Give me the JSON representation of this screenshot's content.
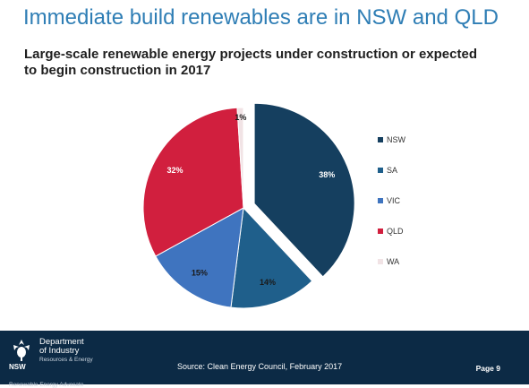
{
  "slide": {
    "title": "Immediate build renewables are in NSW and QLD"
  },
  "chart_data": {
    "type": "pie",
    "title": "Large-scale renewable energy projects under construction or expected to begin construction in 2017",
    "categories": [
      "NSW",
      "SA",
      "VIC",
      "QLD",
      "WA"
    ],
    "values": [
      38,
      14,
      15,
      32,
      1
    ],
    "value_labels": [
      "38%",
      "14%",
      "15%",
      "32%",
      "1%"
    ],
    "colors": [
      "#153f5f",
      "#1f5f8b",
      "#3f74bf",
      "#d11f3e",
      "#f1e3e5"
    ],
    "label_colors": [
      "#ffffff",
      "#1a1a1a",
      "#1a1a1a",
      "#ffffff",
      "#1a1a1a"
    ],
    "exploded": "NSW",
    "legend_position": "right"
  },
  "footer": {
    "department_line1": "Department",
    "department_line2": "of Industry",
    "department_line3": "Resources & Energy",
    "logo_abbr": "NSW",
    "note": "Renewable Energy Advocate",
    "source": "Source: Clean Energy Council, February 2017",
    "page": "Page 9"
  }
}
